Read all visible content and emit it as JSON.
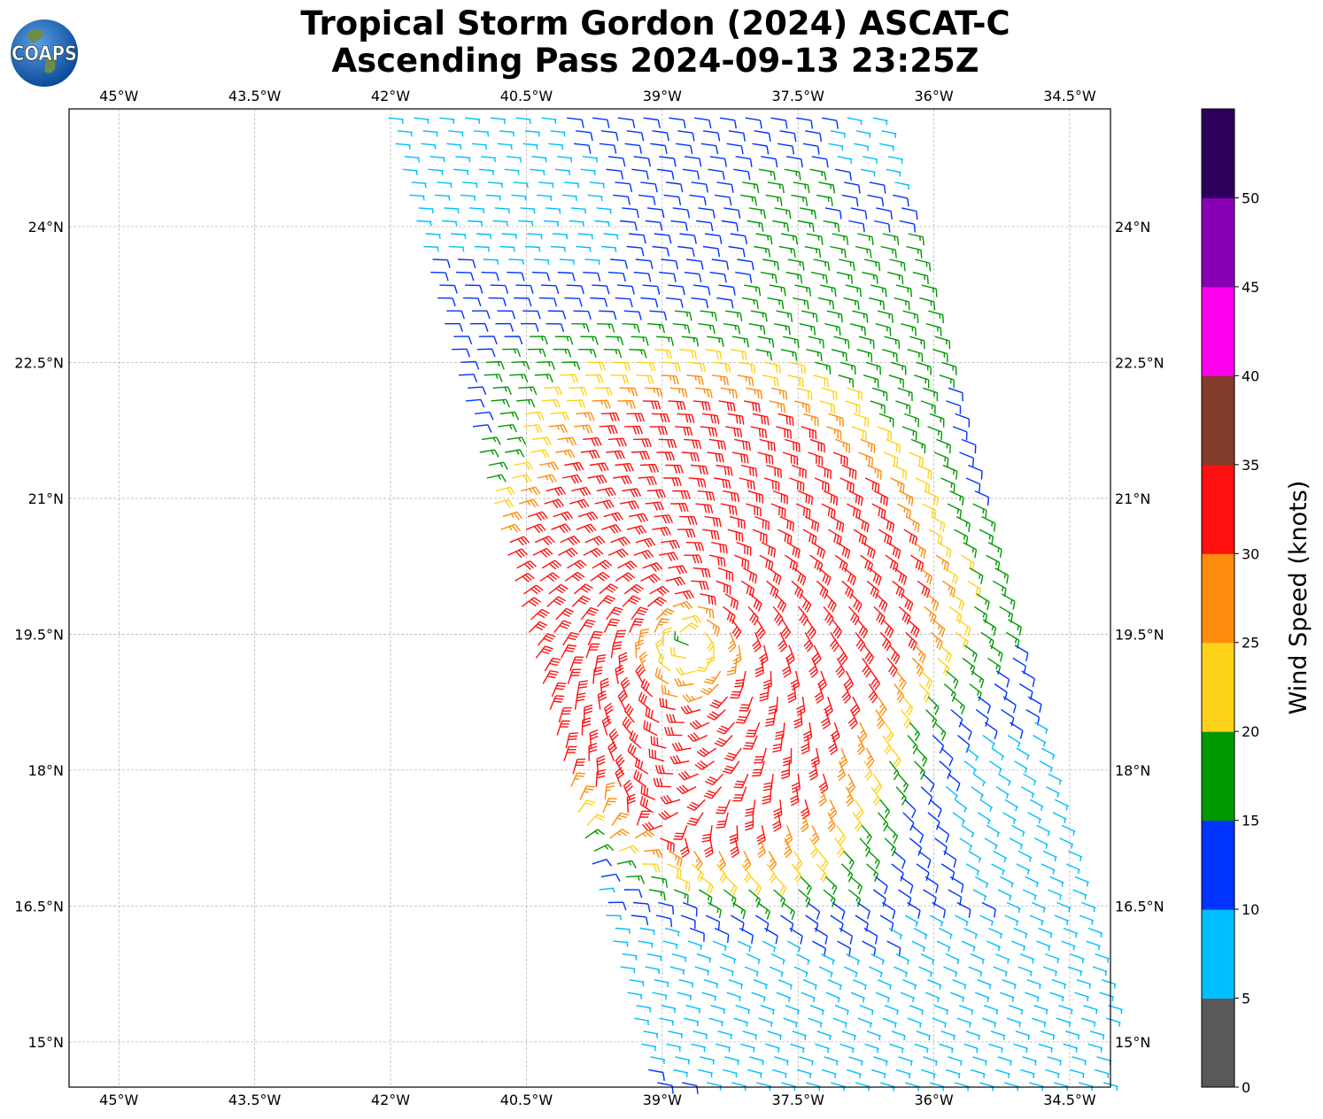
{
  "title_line1": "Tropical Storm Gordon (2024) ASCAT-C",
  "title_line2": "Ascending Pass 2024-09-13 23:25Z",
  "logo_text": "COAPS",
  "colorbar": {
    "label": "Wind Speed (knots)",
    "ticks": [
      "0",
      "5",
      "10",
      "15",
      "20",
      "25",
      "30",
      "35",
      "40",
      "45",
      "50"
    ],
    "bins": [
      {
        "min": 0,
        "max": 5,
        "color": "#595959"
      },
      {
        "min": 5,
        "max": 10,
        "color": "#00bfff"
      },
      {
        "min": 10,
        "max": 15,
        "color": "#0033ff"
      },
      {
        "min": 15,
        "max": 20,
        "color": "#009900"
      },
      {
        "min": 20,
        "max": 25,
        "color": "#ffd21a"
      },
      {
        "min": 25,
        "max": 30,
        "color": "#ff8c0f"
      },
      {
        "min": 30,
        "max": 35,
        "color": "#ff1010"
      },
      {
        "min": 35,
        "max": 40,
        "color": "#833b2a"
      },
      {
        "min": 40,
        "max": 45,
        "color": "#ff00ee"
      },
      {
        "min": 45,
        "max": 50,
        "color": "#8800b3"
      },
      {
        "min": 50,
        "max": 55,
        "color": "#2e005e"
      }
    ]
  },
  "axes": {
    "lon_labels": [
      "45°W",
      "43.5°W",
      "42°W",
      "40.5°W",
      "39°W",
      "37.5°W",
      "36°W",
      "34.5°W"
    ],
    "lon_values": [
      -45,
      -43.5,
      -42,
      -40.5,
      -39,
      -37.5,
      -36,
      -34.5
    ],
    "lat_labels": [
      "24°N",
      "22.5°N",
      "21°N",
      "19.5°N",
      "18°N",
      "16.5°N",
      "15°N"
    ],
    "lat_values": [
      24,
      22.5,
      21,
      19.5,
      18,
      16.5,
      15
    ],
    "lon_range": [
      -45.55,
      -34.05
    ],
    "lat_range": [
      14.5,
      25.3
    ]
  },
  "storm_center": {
    "lon": -38.7,
    "lat": 19.4
  },
  "swath": {
    "top_edge_lon": [
      -42.05,
      -36.7
    ],
    "bottom_edge_lon": [
      -39.1,
      -33.9
    ],
    "lat_range": [
      14.5,
      25.3
    ]
  }
}
